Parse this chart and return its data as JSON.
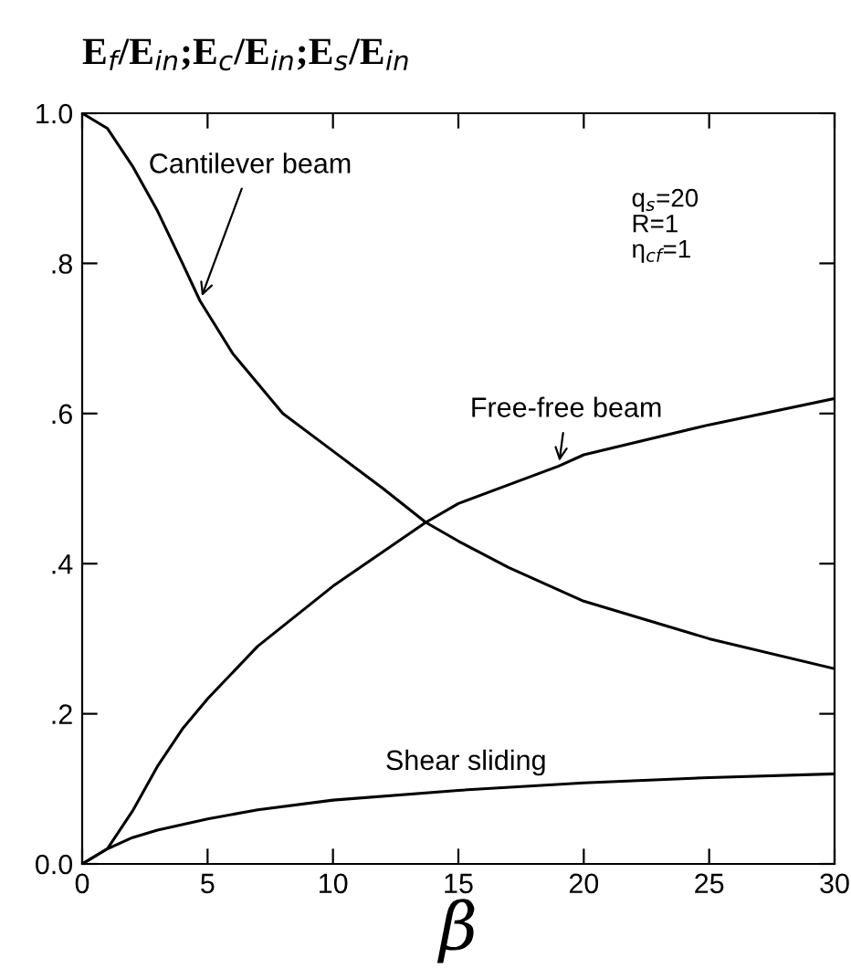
{
  "chart_data": {
    "type": "line",
    "title": "E$_{f}$/E$_{in}$;E$_{c}$/E$_{in}$;E$_{s}$/E$_{in}$",
    "xlabel": "β",
    "xlim": [
      0,
      30
    ],
    "xticks": [
      0,
      5,
      10,
      15,
      20,
      25,
      30
    ],
    "ylim": [
      0,
      1.0
    ],
    "yticks": [
      {
        "value": 0,
        "label": "0.0"
      },
      {
        "value": 0.2,
        "label": ".2"
      },
      {
        "value": 0.4,
        "label": ".4"
      },
      {
        "value": 0.6,
        "label": ".6"
      },
      {
        "value": 0.8,
        "label": ".8"
      },
      {
        "value": 1.0,
        "label": "1.0"
      }
    ],
    "grid": false,
    "legend": false,
    "marker": "none",
    "line_style": "solid",
    "series": [
      {
        "color": "#000000",
        "x": [
          0,
          1,
          2,
          3,
          4,
          4.7,
          6,
          8,
          10,
          12,
          13.7,
          15,
          17,
          20,
          25,
          30
        ],
        "values": [
          1.0,
          0.98,
          0.93,
          0.87,
          0.8,
          0.75,
          0.68,
          0.6,
          0.55,
          0.5,
          0.455,
          0.43,
          0.395,
          0.35,
          0.3,
          0.26
        ]
      },
      {
        "color": "#000000",
        "x": [
          0,
          1,
          2,
          3,
          4,
          5,
          7,
          10,
          13.7,
          15,
          19,
          20,
          25,
          30
        ],
        "values": [
          0,
          0.02,
          0.07,
          0.13,
          0.18,
          0.22,
          0.29,
          0.37,
          0.455,
          0.48,
          0.53,
          0.545,
          0.585,
          0.62
        ]
      },
      {
        "color": "#000000",
        "x": [
          0,
          1,
          2,
          3,
          5,
          7,
          10,
          15,
          20,
          25,
          30
        ],
        "values": [
          0,
          0.02,
          0.035,
          0.045,
          0.06,
          0.072,
          0.085,
          0.098,
          0.108,
          0.115,
          0.12
        ]
      }
    ],
    "annotations": [
      {
        "text": "Cantilever beam",
        "x": 4.7,
        "y": 0.75
      },
      {
        "text": "Free-free beam",
        "x": 19,
        "y": 0.53
      },
      {
        "text": "Shear sliding",
        "x": 14,
        "y": 0.097
      },
      "q$_{s}$=20\nR=1\nη$_{cf}$=1"
    ]
  }
}
